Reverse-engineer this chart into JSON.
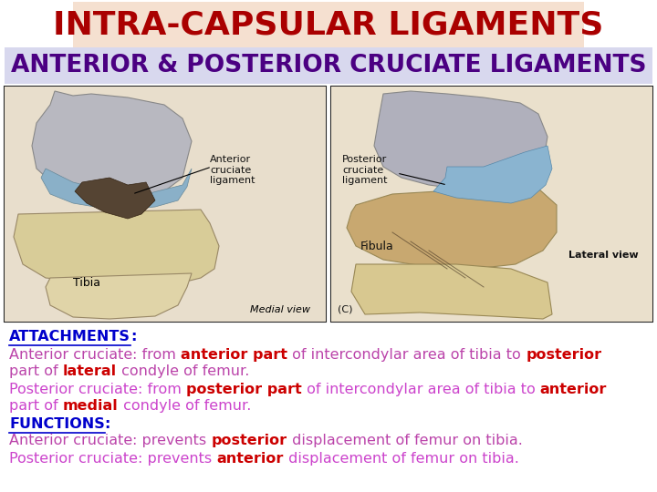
{
  "title": "INTRA-CAPSULAR LIGAMENTS",
  "title_color": "#AA0000",
  "title_bg": "#F5E0D0",
  "subtitle": "ANTERIOR & POSTERIOR CRUCIATE LIGAMENTS",
  "subtitle_color": "#4B0082",
  "subtitle_bg": "#D8D8EE",
  "bg_color": "#FFFFFF",
  "text_lines": [
    {
      "segments": [
        {
          "text": "ATTACHMENTS",
          "color": "#0000CC",
          "bold": true,
          "underline": true
        },
        {
          "text": ":",
          "color": "#0000CC",
          "bold": true,
          "underline": false
        }
      ]
    },
    {
      "segments": [
        {
          "text": "Anterior cruciate",
          "color": "#BB44AA",
          "bold": false,
          "underline": false
        },
        {
          "text": ": from ",
          "color": "#BB44AA",
          "bold": false,
          "underline": false
        },
        {
          "text": "anterior part",
          "color": "#CC0000",
          "bold": true,
          "underline": false
        },
        {
          "text": " of intercondylar area of tibia to ",
          "color": "#BB44AA",
          "bold": false,
          "underline": false
        },
        {
          "text": "posterior",
          "color": "#CC0000",
          "bold": true,
          "underline": false
        }
      ]
    },
    {
      "segments": [
        {
          "text": "part of ",
          "color": "#BB44AA",
          "bold": false,
          "underline": false
        },
        {
          "text": "lateral",
          "color": "#CC0000",
          "bold": true,
          "underline": false
        },
        {
          "text": " condyle of femur.",
          "color": "#BB44AA",
          "bold": false,
          "underline": false
        }
      ]
    },
    {
      "segments": [
        {
          "text": "Posterior cruciate",
          "color": "#CC44CC",
          "bold": false,
          "underline": false
        },
        {
          "text": ": from ",
          "color": "#CC44CC",
          "bold": false,
          "underline": false
        },
        {
          "text": "posterior part",
          "color": "#CC0000",
          "bold": true,
          "underline": false
        },
        {
          "text": " of intercondylar area of tibia to ",
          "color": "#CC44CC",
          "bold": false,
          "underline": false
        },
        {
          "text": "anterior",
          "color": "#CC0000",
          "bold": true,
          "underline": false
        }
      ]
    },
    {
      "segments": [
        {
          "text": "part of ",
          "color": "#CC44CC",
          "bold": false,
          "underline": false
        },
        {
          "text": "medial",
          "color": "#CC0000",
          "bold": true,
          "underline": false
        },
        {
          "text": " condyle of femur.",
          "color": "#CC44CC",
          "bold": false,
          "underline": false
        }
      ]
    },
    {
      "segments": [
        {
          "text": "FUNCTIONS",
          "color": "#0000CC",
          "bold": true,
          "underline": true
        },
        {
          "text": ":",
          "color": "#0000CC",
          "bold": true,
          "underline": false
        }
      ]
    },
    {
      "segments": [
        {
          "text": "Anterior cruciate",
          "color": "#BB44AA",
          "bold": false,
          "underline": false
        },
        {
          "text": ": prevents ",
          "color": "#BB44AA",
          "bold": false,
          "underline": false
        },
        {
          "text": "posterior",
          "color": "#CC0000",
          "bold": true,
          "underline": false
        },
        {
          "text": " displacement of femur on tibia.",
          "color": "#BB44AA",
          "bold": false,
          "underline": false
        }
      ]
    },
    {
      "segments": [
        {
          "text": "Posterior cruciate",
          "color": "#CC44CC",
          "bold": false,
          "underline": false
        },
        {
          "text": ": prevents ",
          "color": "#CC44CC",
          "bold": false,
          "underline": false
        },
        {
          "text": "anterior",
          "color": "#CC0000",
          "bold": true,
          "underline": false
        },
        {
          "text": " displacement of femur on tibia.",
          "color": "#CC44CC",
          "bold": false,
          "underline": false
        }
      ]
    }
  ],
  "font_size_title": 26,
  "font_size_subtitle": 19,
  "font_size_text": 11.5
}
